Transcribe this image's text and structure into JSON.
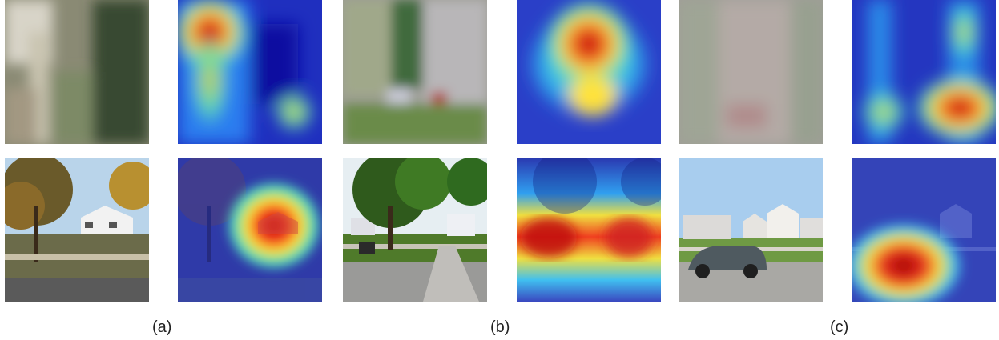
{
  "figure": {
    "panels": [
      {
        "caption": "(a)",
        "aerial_image": "aerial-satellite-tile",
        "aerial_heatmap": "gradcam-heatmap-aerial",
        "street_image": "street-view-photo-tree-house",
        "street_heatmap": "gradcam-heatmap-street"
      },
      {
        "caption": "(b)",
        "aerial_image": "aerial-satellite-tile",
        "aerial_heatmap": "gradcam-heatmap-aerial",
        "street_image": "street-view-photo-trees-sidewalk",
        "street_heatmap": "gradcam-heatmap-street"
      },
      {
        "caption": "(c)",
        "aerial_image": "aerial-satellite-tile",
        "aerial_heatmap": "gradcam-heatmap-aerial",
        "street_image": "street-view-photo-car-houses",
        "street_heatmap": "gradcam-heatmap-street"
      }
    ],
    "colors": {
      "heat_low": "#1a1aa8",
      "heat_mid": "#33c3ff",
      "heat_high": "#d7191c",
      "sky": "#9ec9ea"
    }
  }
}
